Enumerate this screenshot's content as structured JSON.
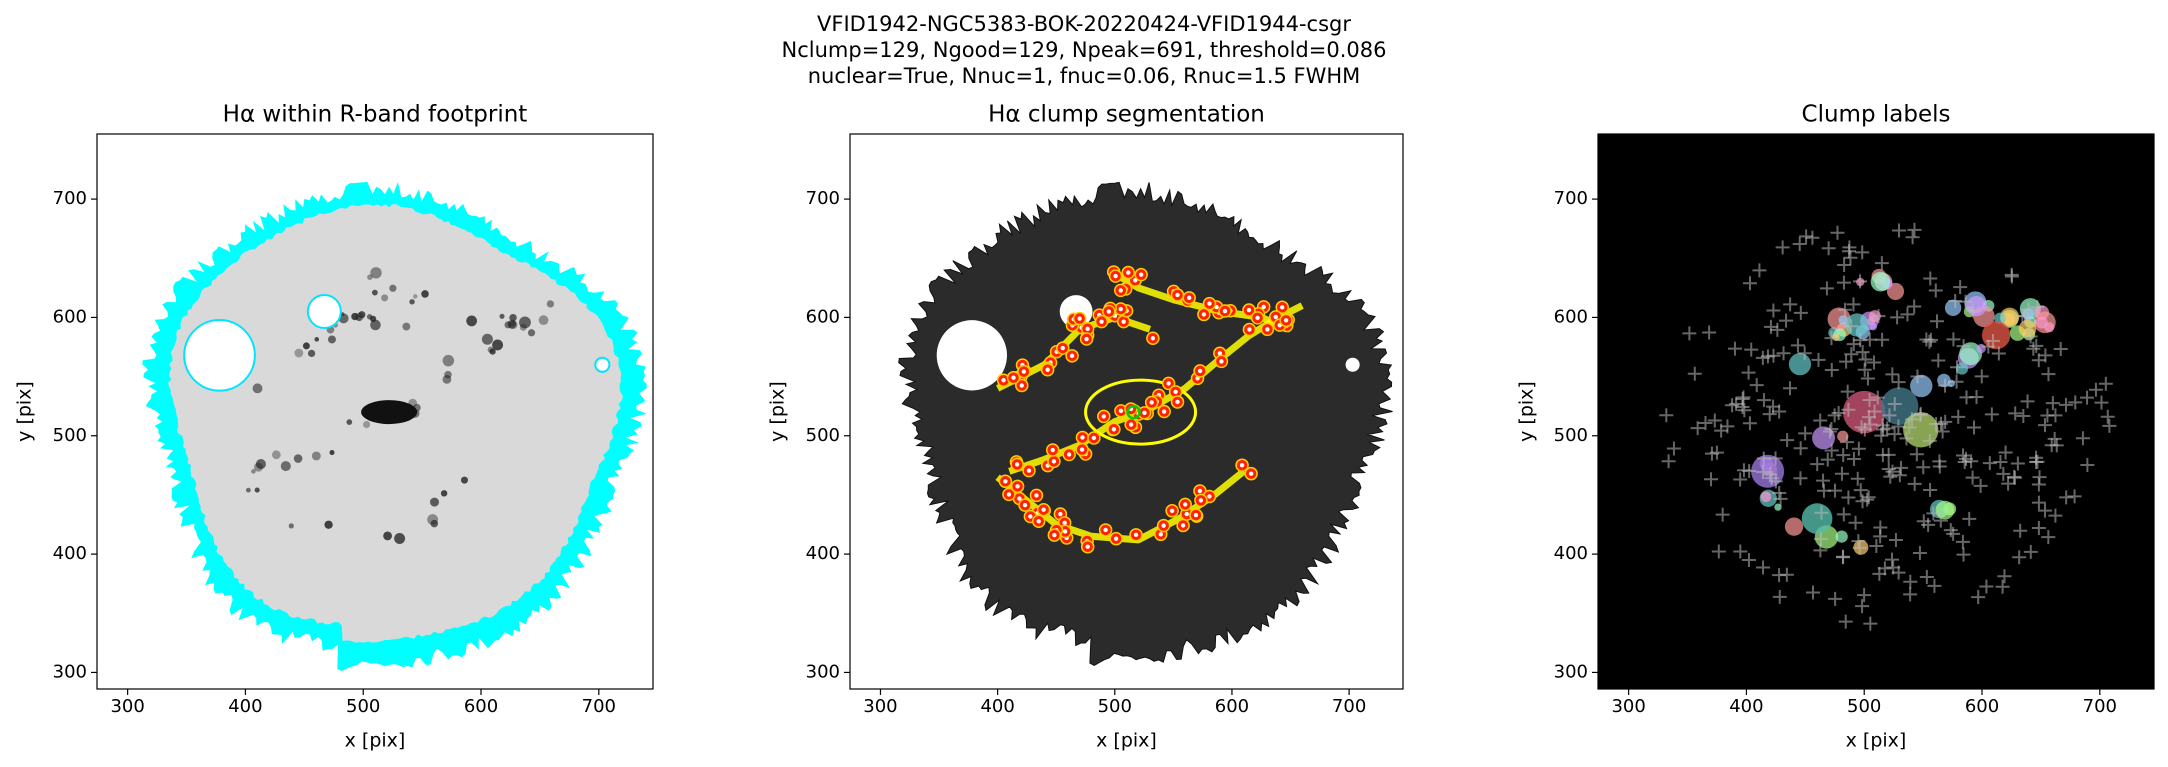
{
  "suptitle": [
    "VFID1942-NGC5383-BOK-20220424-VFID1944-csgr",
    "Nclump=129, Ngood=129, Npeak=691, threshold=0.086",
    "nuclear=True, Nnuc=1, fnuc=0.06, Rnuc=1.5 FWHM"
  ],
  "chart_data": [
    {
      "type": "image",
      "style": "footprint",
      "title": "Hα within R-band footprint",
      "x_label": "x [pix]",
      "y_label": "y [pix]",
      "xlim": [
        274,
        746
      ],
      "ylim": [
        286,
        755
      ],
      "xticks": [
        300,
        400,
        500,
        600,
        700
      ],
      "yticks": [
        300,
        400,
        500,
        600,
        700
      ]
    },
    {
      "type": "image",
      "style": "segmentation",
      "title": "Hα clump segmentation",
      "x_label": "x [pix]",
      "y_label": "y [pix]",
      "xlim": [
        274,
        746
      ],
      "ylim": [
        286,
        755
      ],
      "xticks": [
        300,
        400,
        500,
        600,
        700
      ],
      "yticks": [
        300,
        400,
        500,
        600,
        700
      ]
    },
    {
      "type": "image",
      "style": "labels",
      "title": "Clump labels",
      "x_label": "x [pix]",
      "y_label": "y [pix]",
      "xlim": [
        274,
        746
      ],
      "ylim": [
        286,
        755
      ],
      "xticks": [
        300,
        400,
        500,
        600,
        700
      ],
      "yticks": [
        300,
        400,
        500,
        600,
        700
      ]
    }
  ]
}
